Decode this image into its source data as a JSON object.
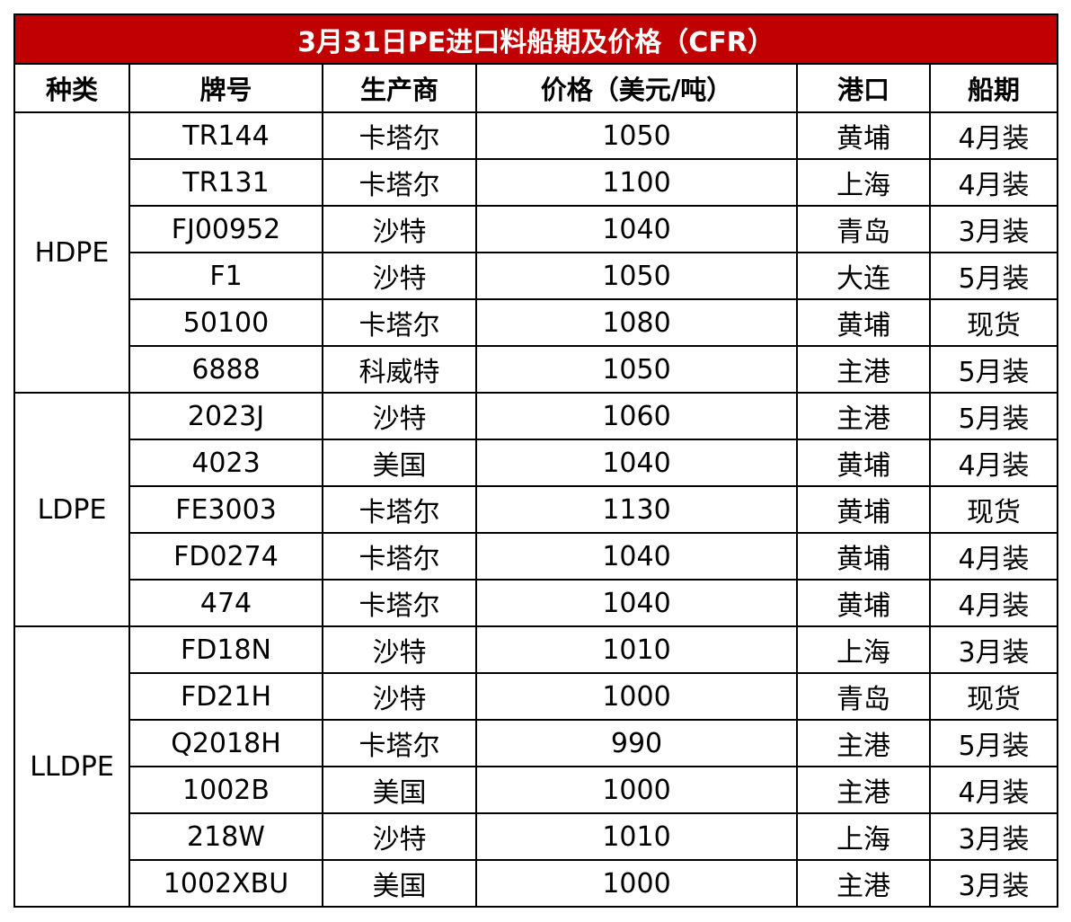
{
  "title": "3月31日PE进口料船期及价格（CFR）",
  "header_bg_color": "#c00000",
  "columns": [
    "种类",
    "牌号",
    "生产商",
    "价格（美元/吨）",
    "港口",
    "船期"
  ],
  "groups": [
    {
      "category": "HDPE",
      "rows": [
        {
          "grade": "TR144",
          "producer": "卡塔尔",
          "price": "1050",
          "port": "黄埔",
          "shipment": "4月装"
        },
        {
          "grade": "TR131",
          "producer": "卡塔尔",
          "price": "1100",
          "port": "上海",
          "shipment": "4月装"
        },
        {
          "grade": "FJ00952",
          "producer": "沙特",
          "price": "1040",
          "port": "青岛",
          "shipment": "3月装"
        },
        {
          "grade": "F1",
          "producer": "沙特",
          "price": "1050",
          "port": "大连",
          "shipment": "5月装"
        },
        {
          "grade": "50100",
          "producer": "卡塔尔",
          "price": "1080",
          "port": "黄埔",
          "shipment": "现货"
        },
        {
          "grade": "6888",
          "producer": "科威特",
          "price": "1050",
          "port": "主港",
          "shipment": "5月装"
        }
      ]
    },
    {
      "category": "LDPE",
      "rows": [
        {
          "grade": "2023J",
          "producer": "沙特",
          "price": "1060",
          "port": "主港",
          "shipment": "5月装"
        },
        {
          "grade": "4023",
          "producer": "美国",
          "price": "1040",
          "port": "黄埔",
          "shipment": "4月装"
        },
        {
          "grade": "FE3003",
          "producer": "卡塔尔",
          "price": "1130",
          "port": "黄埔",
          "shipment": "现货"
        },
        {
          "grade": "FD0274",
          "producer": "卡塔尔",
          "price": "1040",
          "port": "黄埔",
          "shipment": "4月装"
        },
        {
          "grade": "474",
          "producer": "卡塔尔",
          "price": "1040",
          "port": "黄埔",
          "shipment": "4月装"
        }
      ]
    },
    {
      "category": "LLDPE",
      "rows": [
        {
          "grade": "FD18N",
          "producer": "沙特",
          "price": "1010",
          "port": "上海",
          "shipment": "3月装"
        },
        {
          "grade": "FD21H",
          "producer": "沙特",
          "price": "1000",
          "port": "青岛",
          "shipment": "现货"
        },
        {
          "grade": "Q2018H",
          "producer": "卡塔尔",
          "price": "990",
          "port": "主港",
          "shipment": "5月装"
        },
        {
          "grade": "1002B",
          "producer": "美国",
          "price": "1000",
          "port": "主港",
          "shipment": "4月装"
        },
        {
          "grade": "218W",
          "producer": "沙特",
          "price": "1010",
          "port": "上海",
          "shipment": "3月装"
        },
        {
          "grade": "1002XBU",
          "producer": "美国",
          "price": "1000",
          "port": "主港",
          "shipment": "3月装"
        }
      ]
    }
  ]
}
